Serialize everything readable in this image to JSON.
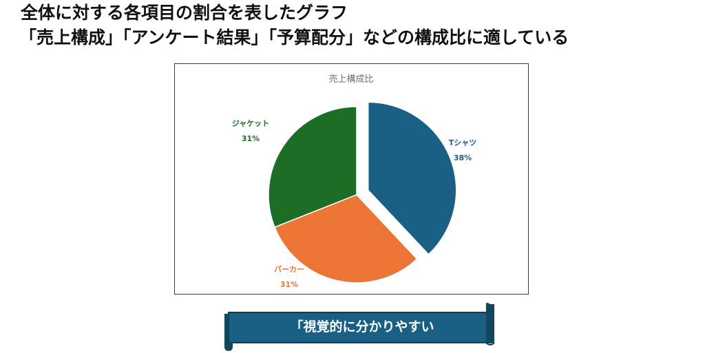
{
  "heading": {
    "line1": "全体に対する各項目の割合を表したグラフ",
    "line2": "「売上構成」「アンケート結果」「予算配分」などの構成比に適している"
  },
  "chart_data": {
    "type": "pie",
    "title": "売上構成比",
    "slices": [
      {
        "label": "Tシャツ",
        "value": 38,
        "display": "38%",
        "color": "#1a5f84",
        "exploded": true
      },
      {
        "label": "パーカー",
        "value": 31,
        "display": "31%",
        "color": "#ec7535",
        "exploded": false
      },
      {
        "label": "ジャケット",
        "value": 31,
        "display": "31%",
        "color": "#1c6e26",
        "exploded": false
      }
    ],
    "start_angle_deg": 0,
    "direction": "clockwise",
    "legend": "none",
    "data_labels": "outside"
  },
  "banner": {
    "text": "「視覚的に分かりやすい",
    "color": "#1a5f84"
  }
}
